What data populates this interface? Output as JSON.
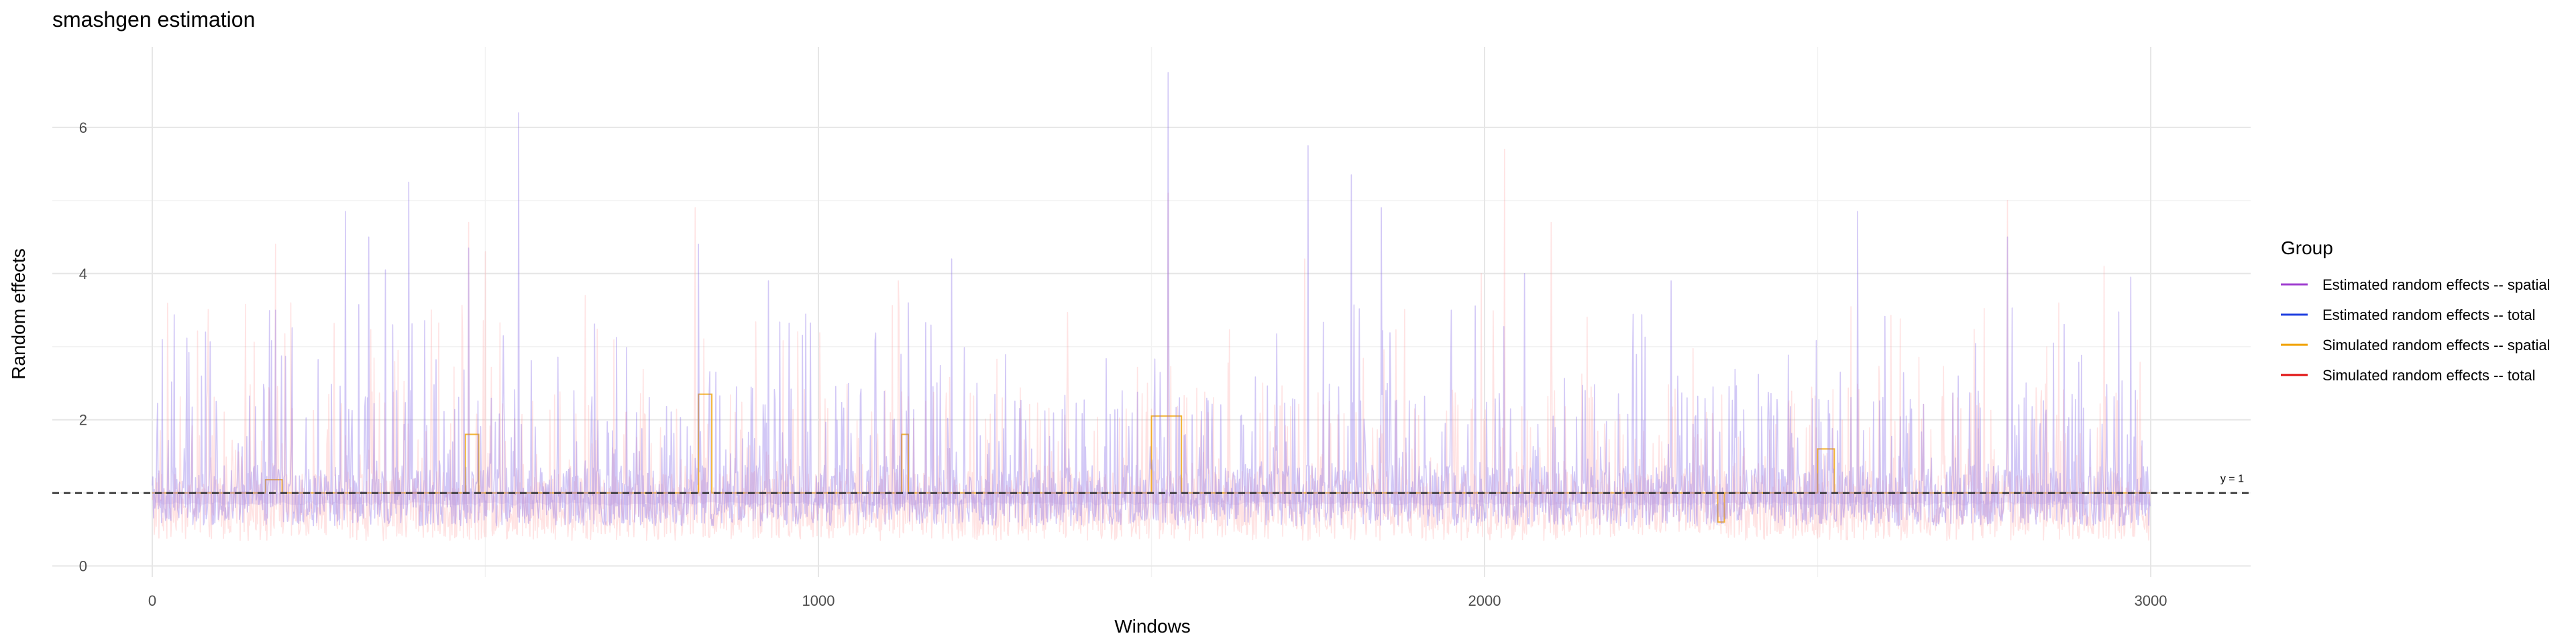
{
  "chart_data": {
    "type": "line",
    "title": "smashgen estimation",
    "xlabel": "Windows",
    "ylabel": "Random effects",
    "xlim": [
      -150,
      3150
    ],
    "ylim": [
      -0.15,
      7.1
    ],
    "x_ticks": [
      0,
      1000,
      2000,
      3000
    ],
    "y_ticks": [
      0,
      2,
      4,
      6
    ],
    "grid": true,
    "legend": {
      "title": "Group",
      "placement": "right",
      "entries": [
        {
          "label": "Estimated random effects -- spatial",
          "color": "#a040d0"
        },
        {
          "label": "Estimated random effects -- total",
          "color": "#2040e0"
        },
        {
          "label": "Simulated random effects -- spatial",
          "color": "#f0a000"
        },
        {
          "label": "Simulated random effects -- total",
          "color": "#e01010"
        }
      ]
    },
    "reference_line": {
      "y": 1,
      "label": "y = 1",
      "style": "dashed",
      "color": "#333333"
    },
    "series": [
      {
        "name": "Simulated random effects -- total",
        "color": "#ff9a9a",
        "opacity": 0.28,
        "n": 3000,
        "baseline": 0.8,
        "low": 0.35,
        "peaks": [
          [
            185,
            4.4
          ],
          [
            475,
            4.7
          ],
          [
            500,
            4.3
          ],
          [
            650,
            3.7
          ],
          [
            815,
            4.9
          ],
          [
            1120,
            3.9
          ],
          [
            1525,
            5.1
          ],
          [
            1730,
            4.2
          ],
          [
            1995,
            4.0
          ],
          [
            2030,
            5.7
          ],
          [
            2100,
            4.7
          ],
          [
            2785,
            5.0
          ],
          [
            2930,
            4.1
          ]
        ]
      },
      {
        "name": "Simulated random effects -- spatial",
        "color": "#f0a000",
        "opacity": 0.8,
        "n": 3000,
        "steps": [
          [
            170,
            195,
            1.18
          ],
          [
            470,
            490,
            1.8
          ],
          [
            820,
            840,
            2.35
          ],
          [
            1125,
            1135,
            1.8
          ],
          [
            1500,
            1545,
            2.05
          ],
          [
            2350,
            2360,
            0.6
          ],
          [
            2500,
            2525,
            1.6
          ]
        ]
      },
      {
        "name": "Estimated random effects -- total",
        "color": "#8a6ee8",
        "opacity": 0.38,
        "n": 3000,
        "baseline": 0.88,
        "low": 0.55,
        "peaks": [
          [
            15,
            3.1
          ],
          [
            80,
            3.2
          ],
          [
            185,
            3.5
          ],
          [
            290,
            4.85
          ],
          [
            325,
            4.5
          ],
          [
            350,
            4.05
          ],
          [
            385,
            5.25
          ],
          [
            475,
            4.35
          ],
          [
            550,
            6.2
          ],
          [
            820,
            4.4
          ],
          [
            925,
            3.9
          ],
          [
            1135,
            3.6
          ],
          [
            1200,
            4.2
          ],
          [
            1525,
            6.75
          ],
          [
            1735,
            5.75
          ],
          [
            1800,
            5.35
          ],
          [
            1845,
            4.9
          ],
          [
            1950,
            3.5
          ],
          [
            2060,
            4.0
          ],
          [
            2280,
            3.9
          ],
          [
            2560,
            4.85
          ],
          [
            2785,
            4.5
          ],
          [
            2970,
            3.95
          ]
        ]
      },
      {
        "name": "Estimated random effects -- spatial",
        "color": "#b18be0",
        "opacity": 0.22,
        "n": 3000,
        "band": [
          0.85,
          1.0
        ]
      }
    ]
  }
}
